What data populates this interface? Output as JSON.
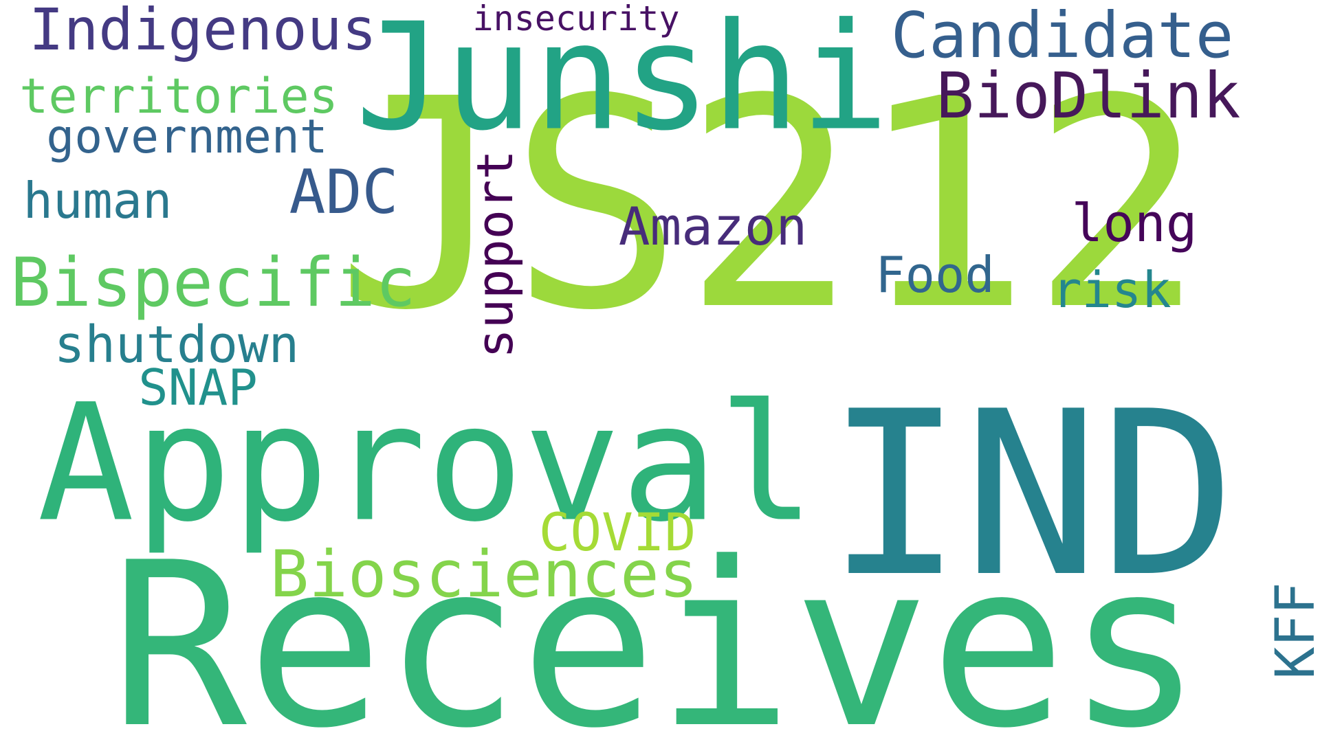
{
  "words": [
    {
      "id": "js212",
      "text": "JS212",
      "color": "#9cd93c"
    },
    {
      "id": "receives",
      "text": "Receives",
      "color": "#34b679"
    },
    {
      "id": "ind",
      "text": "IND",
      "color": "#26828e"
    },
    {
      "id": "approval",
      "text": "Approval",
      "color": "#2fb37a"
    },
    {
      "id": "junshi",
      "text": "Junshi",
      "color": "#22a385"
    },
    {
      "id": "candidate",
      "text": "Candidate",
      "color": "#355f8d"
    },
    {
      "id": "biodlink",
      "text": "BioDlink",
      "color": "#46185a"
    },
    {
      "id": "indigenous",
      "text": "Indigenous",
      "color": "#443a83"
    },
    {
      "id": "insecurity",
      "text": "insecurity",
      "color": "#471164"
    },
    {
      "id": "territories",
      "text": "territories",
      "color": "#5ec962"
    },
    {
      "id": "government",
      "text": "government",
      "color": "#33638d"
    },
    {
      "id": "human",
      "text": "human",
      "color": "#2a788e"
    },
    {
      "id": "adc",
      "text": "ADC",
      "color": "#375a8c"
    },
    {
      "id": "bispecific",
      "text": "Bispecific",
      "color": "#5ec962"
    },
    {
      "id": "shutdown",
      "text": "shutdown",
      "color": "#277f8e"
    },
    {
      "id": "snap",
      "text": "SNAP",
      "color": "#21918c"
    },
    {
      "id": "support",
      "text": "support",
      "color": "#440154"
    },
    {
      "id": "amazon",
      "text": "Amazon",
      "color": "#472c7a"
    },
    {
      "id": "long",
      "text": "long",
      "color": "#450559"
    },
    {
      "id": "food",
      "text": "Food",
      "color": "#31668e"
    },
    {
      "id": "risk",
      "text": "risk",
      "color": "#24868e"
    },
    {
      "id": "covid",
      "text": "COVID",
      "color": "#a5db36"
    },
    {
      "id": "biosciences",
      "text": "Biosciences",
      "color": "#84d44b"
    },
    {
      "id": "kff",
      "text": "KFF",
      "color": "#2c728e"
    }
  ]
}
